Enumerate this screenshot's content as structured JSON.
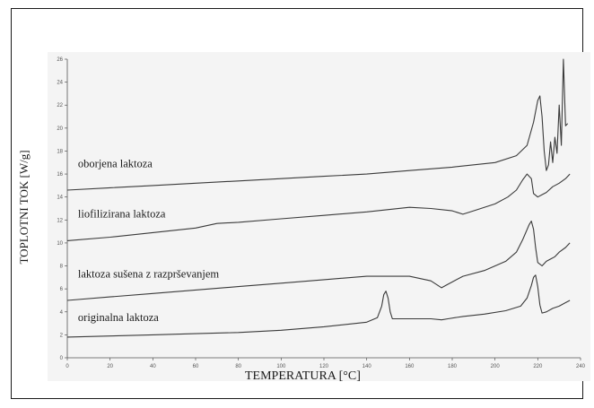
{
  "chart_data": {
    "type": "line",
    "xlabel": "TEMPERATURA [°C]",
    "ylabel": "TOPLOTNI TOK [W/g]",
    "xlim": [
      0,
      240
    ],
    "ylim": [
      0,
      26
    ],
    "x_ticks": [
      0,
      20,
      40,
      60,
      80,
      100,
      120,
      140,
      160,
      180,
      200,
      220,
      240
    ],
    "y_ticks": [
      0,
      2,
      4,
      6,
      8,
      10,
      12,
      14,
      16,
      18,
      20,
      22,
      24,
      26
    ],
    "grid": false,
    "legend": "labels placed on curves",
    "series": [
      {
        "name": "oborjena laktoza",
        "points": [
          [
            0,
            14.6
          ],
          [
            20,
            14.8
          ],
          [
            40,
            15.0
          ],
          [
            60,
            15.2
          ],
          [
            80,
            15.4
          ],
          [
            100,
            15.6
          ],
          [
            120,
            15.8
          ],
          [
            140,
            16.0
          ],
          [
            160,
            16.3
          ],
          [
            180,
            16.6
          ],
          [
            200,
            17.0
          ],
          [
            210,
            17.6
          ],
          [
            215,
            18.5
          ],
          [
            218,
            20.5
          ],
          [
            220,
            22.4
          ],
          [
            221,
            22.8
          ],
          [
            222,
            21.0
          ],
          [
            223,
            18.0
          ],
          [
            224,
            16.3
          ],
          [
            225,
            16.8
          ],
          [
            226,
            18.8
          ],
          [
            227,
            17.0
          ],
          [
            228,
            19.2
          ],
          [
            229,
            17.8
          ],
          [
            230,
            22.0
          ],
          [
            231,
            18.5
          ],
          [
            232,
            26.0
          ],
          [
            233,
            20.2
          ],
          [
            234,
            20.4
          ]
        ]
      },
      {
        "name": "liofilizirana laktoza",
        "points": [
          [
            0,
            10.2
          ],
          [
            20,
            10.5
          ],
          [
            40,
            10.9
          ],
          [
            60,
            11.3
          ],
          [
            70,
            11.7
          ],
          [
            80,
            11.8
          ],
          [
            100,
            12.1
          ],
          [
            120,
            12.4
          ],
          [
            140,
            12.7
          ],
          [
            160,
            13.1
          ],
          [
            170,
            13.0
          ],
          [
            180,
            12.8
          ],
          [
            185,
            12.5
          ],
          [
            190,
            12.8
          ],
          [
            200,
            13.4
          ],
          [
            206,
            14.0
          ],
          [
            210,
            14.6
          ],
          [
            213,
            15.5
          ],
          [
            215,
            16.0
          ],
          [
            217,
            15.6
          ],
          [
            218,
            14.3
          ],
          [
            220,
            14.0
          ],
          [
            222,
            14.2
          ],
          [
            224,
            14.4
          ],
          [
            227,
            14.9
          ],
          [
            230,
            15.2
          ],
          [
            233,
            15.6
          ],
          [
            235,
            16.0
          ]
        ]
      },
      {
        "name": "laktoza sušena z razprševanjem",
        "points": [
          [
            0,
            5.0
          ],
          [
            20,
            5.3
          ],
          [
            40,
            5.6
          ],
          [
            60,
            5.9
          ],
          [
            80,
            6.2
          ],
          [
            100,
            6.5
          ],
          [
            120,
            6.8
          ],
          [
            140,
            7.1
          ],
          [
            160,
            7.1
          ],
          [
            170,
            6.7
          ],
          [
            175,
            6.1
          ],
          [
            178,
            6.4
          ],
          [
            185,
            7.1
          ],
          [
            195,
            7.6
          ],
          [
            205,
            8.4
          ],
          [
            210,
            9.2
          ],
          [
            213,
            10.3
          ],
          [
            216,
            11.6
          ],
          [
            217,
            11.9
          ],
          [
            218,
            11.2
          ],
          [
            219,
            9.6
          ],
          [
            220,
            8.3
          ],
          [
            222,
            8.0
          ],
          [
            224,
            8.4
          ],
          [
            226,
            8.6
          ],
          [
            228,
            8.8
          ],
          [
            230,
            9.2
          ],
          [
            233,
            9.6
          ],
          [
            235,
            10.0
          ]
        ]
      },
      {
        "name": "originalna laktoza",
        "points": [
          [
            0,
            1.8
          ],
          [
            20,
            1.9
          ],
          [
            40,
            2.0
          ],
          [
            60,
            2.1
          ],
          [
            80,
            2.2
          ],
          [
            100,
            2.4
          ],
          [
            120,
            2.7
          ],
          [
            140,
            3.1
          ],
          [
            145,
            3.5
          ],
          [
            147,
            4.5
          ],
          [
            148,
            5.5
          ],
          [
            149,
            5.8
          ],
          [
            150,
            5.2
          ],
          [
            151,
            4.0
          ],
          [
            152,
            3.4
          ],
          [
            160,
            3.4
          ],
          [
            170,
            3.4
          ],
          [
            175,
            3.3
          ],
          [
            178,
            3.4
          ],
          [
            185,
            3.6
          ],
          [
            195,
            3.8
          ],
          [
            205,
            4.1
          ],
          [
            212,
            4.5
          ],
          [
            215,
            5.2
          ],
          [
            217,
            6.3
          ],
          [
            218,
            7.0
          ],
          [
            219,
            7.2
          ],
          [
            220,
            6.2
          ],
          [
            221,
            4.6
          ],
          [
            222,
            3.9
          ],
          [
            224,
            4.0
          ],
          [
            227,
            4.3
          ],
          [
            230,
            4.5
          ],
          [
            233,
            4.8
          ],
          [
            235,
            5.0
          ]
        ]
      }
    ]
  }
}
